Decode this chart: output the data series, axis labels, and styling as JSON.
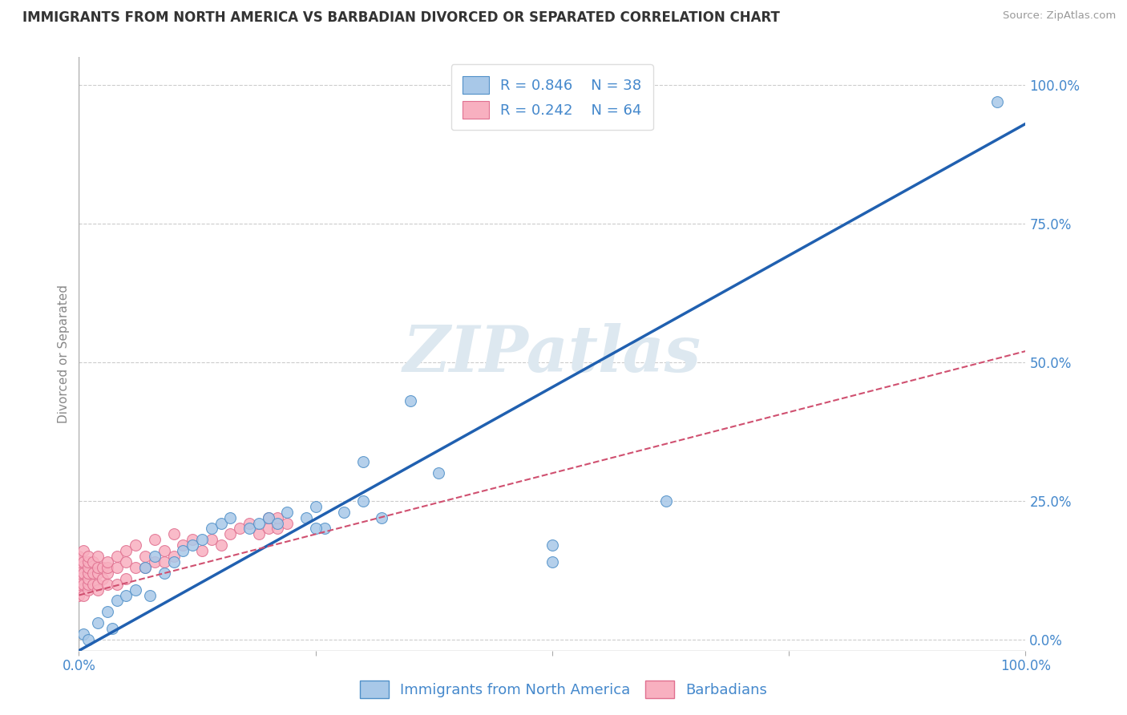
{
  "title": "IMMIGRANTS FROM NORTH AMERICA VS BARBADIAN DIVORCED OR SEPARATED CORRELATION CHART",
  "source_text": "Source: ZipAtlas.com",
  "ylabel": "Divorced or Separated",
  "xlim": [
    0.0,
    1.0
  ],
  "ylim": [
    -0.02,
    1.05
  ],
  "xticks": [
    0.0,
    0.25,
    0.5,
    0.75,
    1.0
  ],
  "xtick_labels": [
    "0.0%",
    "",
    "",
    "",
    "100.0%"
  ],
  "ytick_labels_right": [
    "100.0%",
    "75.0%",
    "50.0%",
    "25.0%",
    "0.0%"
  ],
  "ytick_positions_right": [
    1.0,
    0.75,
    0.5,
    0.25,
    0.0
  ],
  "legend_blue_r": "R = 0.846",
  "legend_blue_n": "N = 38",
  "legend_pink_r": "R = 0.242",
  "legend_pink_n": "N = 64",
  "blue_color": "#a8c8e8",
  "blue_edge_color": "#5090c8",
  "blue_line_color": "#2060b0",
  "pink_color": "#f8b0c0",
  "pink_edge_color": "#e07090",
  "pink_line_color": "#d05070",
  "watermark_color": "#dde8f0",
  "background_color": "#ffffff",
  "grid_color": "#cccccc",
  "axis_color": "#4488cc",
  "blue_scatter_x": [
    0.005,
    0.01,
    0.02,
    0.03,
    0.035,
    0.04,
    0.05,
    0.06,
    0.07,
    0.075,
    0.08,
    0.09,
    0.1,
    0.11,
    0.12,
    0.13,
    0.14,
    0.15,
    0.16,
    0.18,
    0.19,
    0.2,
    0.21,
    0.22,
    0.24,
    0.25,
    0.26,
    0.28,
    0.3,
    0.32,
    0.35,
    0.38,
    0.5,
    0.62,
    0.3,
    0.97,
    0.5,
    0.25
  ],
  "blue_scatter_y": [
    0.01,
    0.0,
    0.03,
    0.05,
    0.02,
    0.07,
    0.08,
    0.09,
    0.13,
    0.08,
    0.15,
    0.12,
    0.14,
    0.16,
    0.17,
    0.18,
    0.2,
    0.21,
    0.22,
    0.2,
    0.21,
    0.22,
    0.21,
    0.23,
    0.22,
    0.24,
    0.2,
    0.23,
    0.25,
    0.22,
    0.43,
    0.3,
    0.14,
    0.25,
    0.32,
    0.97,
    0.17,
    0.2
  ],
  "pink_scatter_x": [
    0.0,
    0.0,
    0.0,
    0.0,
    0.0,
    0.0,
    0.0,
    0.0,
    0.005,
    0.005,
    0.005,
    0.005,
    0.005,
    0.01,
    0.01,
    0.01,
    0.01,
    0.01,
    0.01,
    0.01,
    0.015,
    0.015,
    0.015,
    0.02,
    0.02,
    0.02,
    0.02,
    0.02,
    0.025,
    0.025,
    0.03,
    0.03,
    0.03,
    0.03,
    0.04,
    0.04,
    0.04,
    0.05,
    0.05,
    0.05,
    0.06,
    0.06,
    0.07,
    0.07,
    0.08,
    0.08,
    0.09,
    0.09,
    0.1,
    0.1,
    0.11,
    0.12,
    0.13,
    0.14,
    0.15,
    0.16,
    0.17,
    0.18,
    0.19,
    0.2,
    0.2,
    0.21,
    0.21,
    0.22
  ],
  "pink_scatter_y": [
    0.08,
    0.09,
    0.1,
    0.11,
    0.12,
    0.13,
    0.14,
    0.15,
    0.08,
    0.1,
    0.12,
    0.14,
    0.16,
    0.09,
    0.1,
    0.11,
    0.12,
    0.13,
    0.14,
    0.15,
    0.1,
    0.12,
    0.14,
    0.09,
    0.1,
    0.12,
    0.13,
    0.15,
    0.11,
    0.13,
    0.1,
    0.12,
    0.13,
    0.14,
    0.1,
    0.13,
    0.15,
    0.11,
    0.14,
    0.16,
    0.13,
    0.17,
    0.13,
    0.15,
    0.14,
    0.18,
    0.14,
    0.16,
    0.15,
    0.19,
    0.17,
    0.18,
    0.16,
    0.18,
    0.17,
    0.19,
    0.2,
    0.21,
    0.19,
    0.2,
    0.22,
    0.2,
    0.22,
    0.21
  ],
  "blue_line_x": [
    0.0,
    1.0
  ],
  "blue_line_y": [
    -0.02,
    0.93
  ],
  "pink_line_x": [
    0.0,
    1.0
  ],
  "pink_line_y": [
    0.08,
    0.52
  ]
}
